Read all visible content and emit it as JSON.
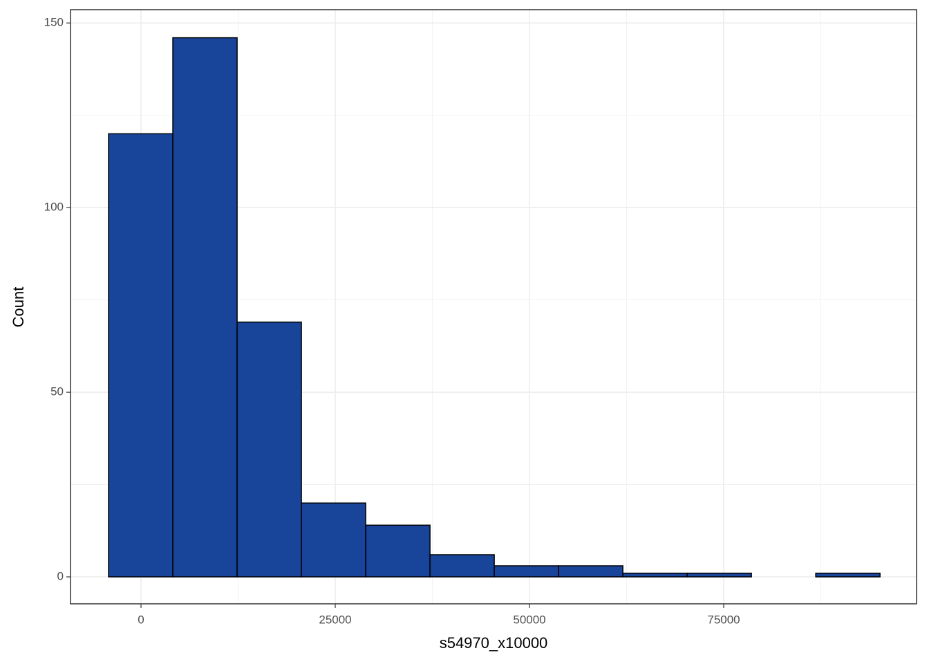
{
  "chart_data": {
    "type": "histogram",
    "x_label": "s54970_x10000",
    "y_label": "Count",
    "bins": [
      -4180,
      4095,
      12370,
      20645,
      28920,
      37195,
      45470,
      53745,
      62020,
      70295,
      78570,
      86845,
      95120
    ],
    "values": [
      120,
      146,
      69,
      20,
      14,
      6,
      3,
      3,
      1,
      1,
      0,
      1
    ],
    "color": "#18449a",
    "xlim": [
      -9075,
      99822
    ],
    "ylim": [
      -7.3,
      153.6
    ],
    "xticks": [
      0,
      25000,
      50000,
      75000
    ],
    "yticks": [
      0,
      50,
      100,
      150
    ],
    "grid": true
  }
}
